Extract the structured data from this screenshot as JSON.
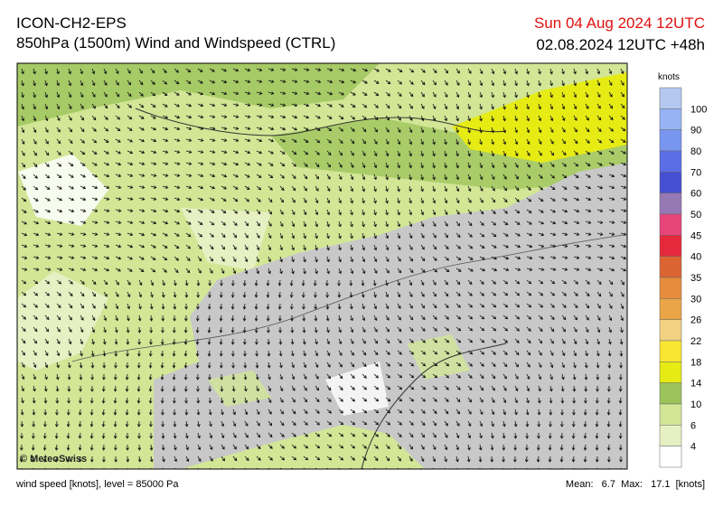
{
  "header": {
    "model": "ICON-CH2-EPS",
    "title": "850hPa (1500m) Wind and Windspeed (CTRL)",
    "valid_time": "Sun 04 Aug 2024 12UTC",
    "run_time": "02.08.2024 12UTC +48h"
  },
  "map": {
    "credit": "© MeteoSwiss"
  },
  "legend": {
    "unit": "knots",
    "levels": [
      "100",
      "90",
      "80",
      "70",
      "60",
      "50",
      "45",
      "40",
      "35",
      "30",
      "26",
      "22",
      "18",
      "14",
      "10",
      "6",
      "4"
    ],
    "colors": [
      "#b4c8f0",
      "#96b4f5",
      "#7896f0",
      "#5a6ee6",
      "#4650d2",
      "#9678b4",
      "#e6457a",
      "#e6283c",
      "#dc6432",
      "#e68c3c",
      "#eba546",
      "#f0d282",
      "#fae632",
      "#e6eb14",
      "#9bc35a",
      "#d2e696",
      "#e6f0c3",
      "#ffffff"
    ]
  },
  "footer": {
    "description": "wind speed [knots], level = 85000 Pa",
    "stats": "Mean:   6.7  Max:   17.1  [knots]"
  }
}
